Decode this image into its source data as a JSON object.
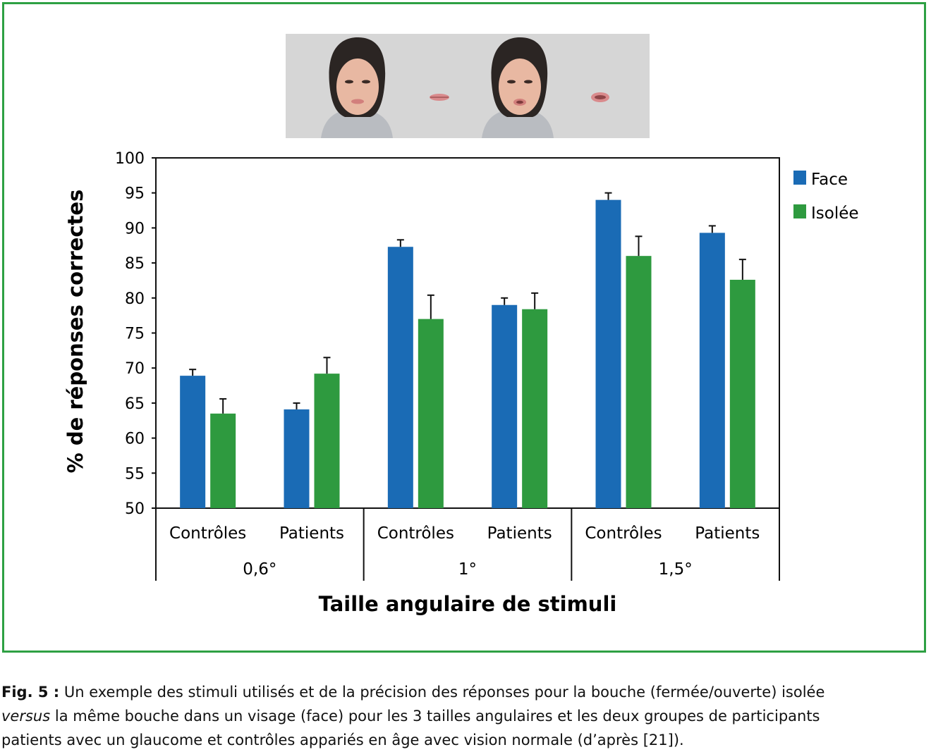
{
  "chart_data": {
    "type": "bar",
    "ylabel": "% de réponses correctes",
    "xlabel": "Taille angulaire de stimuli",
    "ylim": [
      50,
      100
    ],
    "yticks": [
      50,
      55,
      60,
      65,
      70,
      75,
      80,
      85,
      90,
      95,
      100
    ],
    "groups": [
      "0,6°",
      "1°",
      "1,5°"
    ],
    "categories": [
      "Contrôles",
      "Patients",
      "Contrôles",
      "Patients",
      "Contrôles",
      "Patients"
    ],
    "series": [
      {
        "name": "Face",
        "color": "#1a6bb5",
        "values": [
          68.9,
          64.1,
          87.3,
          79.0,
          94.0,
          89.3
        ],
        "errors": [
          0.9,
          0.9,
          1.0,
          1.0,
          1.0,
          1.0
        ]
      },
      {
        "name": "Isolée",
        "color": "#2e9a3f",
        "values": [
          63.5,
          69.2,
          77.0,
          78.4,
          86.0,
          82.6
        ],
        "errors": [
          2.1,
          2.3,
          3.4,
          2.3,
          2.8,
          2.9
        ]
      }
    ],
    "legend": "right",
    "grid": false
  },
  "stimuli": {
    "faces": 2,
    "mouths": [
      "fermée",
      "ouverte"
    ]
  },
  "caption": {
    "label": "Fig. 5 :",
    "text_1": " Un exemple des stimuli utilisés et de la précision des réponses pour la bouche (fermée/ouverte) isolée",
    "text_italic": "versus",
    "text_2": " la même bouche dans un visage (face) pour les 3 tailles angulaires et les deux groupes de participants",
    "text_3": "patients avec un glaucome et contrôles appariés en âge avec vision normale (d’après [21])."
  },
  "colors": {
    "frame": "#2ea043",
    "face": "#1a6bb5",
    "isolee": "#2e9a3f",
    "stimulus_background": "#d6d6d6"
  }
}
